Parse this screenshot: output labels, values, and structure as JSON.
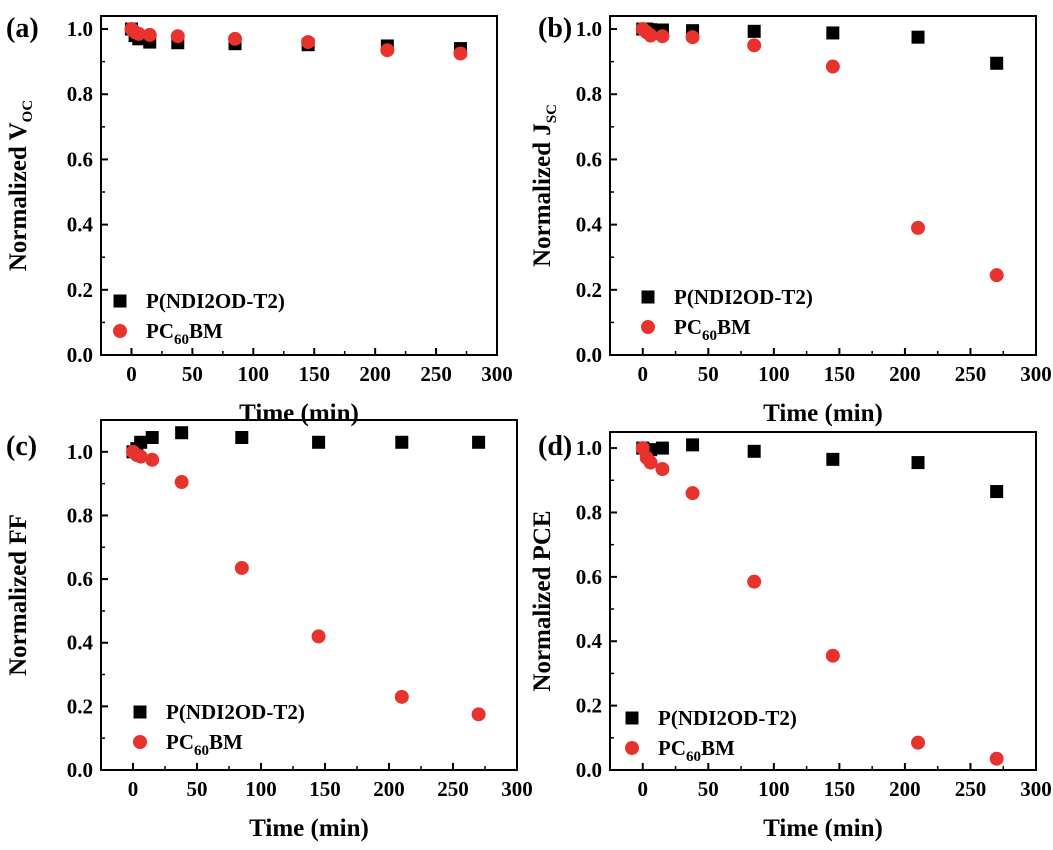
{
  "figure": {
    "series_styles": [
      {
        "name": "P(NDI2OD-T2)",
        "marker": "square",
        "color": "#000000"
      },
      {
        "name": "PC60BM",
        "marker": "circle",
        "color": "#e8322e"
      }
    ]
  },
  "chart_data": [
    {
      "type": "scatter",
      "panel": "(a)",
      "xlabel": "Time (min)",
      "ylabel": {
        "main": "Normalized V",
        "sub": "OC"
      },
      "xlim": [
        -25,
        300
      ],
      "ylim": [
        0,
        1.04
      ],
      "xticks": [
        0,
        50,
        100,
        150,
        200,
        250,
        300
      ],
      "yticks": [
        0.0,
        0.2,
        0.4,
        0.6,
        0.8,
        1.0
      ],
      "legend_position": "bottom-left",
      "series": [
        {
          "name": "P(NDI2OD-T2)",
          "legend": {
            "main": "P(NDI2OD-T2)"
          },
          "x": [
            0,
            3,
            6,
            15,
            38,
            85,
            145,
            210,
            270
          ],
          "y": [
            1.0,
            0.98,
            0.97,
            0.96,
            0.958,
            0.955,
            0.952,
            0.948,
            0.94
          ]
        },
        {
          "name": "PC60BM",
          "legend": {
            "main": "PC",
            "sub": "60",
            "after": "BM"
          },
          "x": [
            0,
            3,
            6,
            15,
            38,
            85,
            145,
            210,
            270
          ],
          "y": [
            1.0,
            0.99,
            0.985,
            0.982,
            0.978,
            0.97,
            0.96,
            0.935,
            0.925
          ]
        }
      ]
    },
    {
      "type": "scatter",
      "panel": "(b)",
      "xlabel": "Time (min)",
      "ylabel": {
        "main": "Normalized J",
        "sub": "SC"
      },
      "xlim": [
        -25,
        300
      ],
      "ylim": [
        0,
        1.04
      ],
      "xticks": [
        0,
        50,
        100,
        150,
        200,
        250,
        300
      ],
      "yticks": [
        0.0,
        0.2,
        0.4,
        0.6,
        0.8,
        1.0
      ],
      "legend_position": "bottom-left",
      "series": [
        {
          "name": "P(NDI2OD-T2)",
          "legend": {
            "main": "P(NDI2OD-T2)"
          },
          "x": [
            0,
            3,
            6,
            15,
            38,
            85,
            145,
            210,
            270
          ],
          "y": [
            1.0,
            1.0,
            0.998,
            0.997,
            0.995,
            0.993,
            0.988,
            0.975,
            0.895
          ]
        },
        {
          "name": "PC60BM",
          "legend": {
            "main": "PC",
            "sub": "60",
            "after": "BM"
          },
          "x": [
            0,
            3,
            6,
            15,
            38,
            85,
            145,
            210,
            270
          ],
          "y": [
            1.0,
            0.99,
            0.98,
            0.978,
            0.975,
            0.95,
            0.885,
            0.39,
            0.245
          ]
        }
      ]
    },
    {
      "type": "scatter",
      "panel": "(c)",
      "xlabel": "Time (min)",
      "ylabel": {
        "main": "Normalized FF"
      },
      "xlim": [
        -25,
        300
      ],
      "ylim": [
        0,
        1.1
      ],
      "xticks": [
        0,
        50,
        100,
        150,
        200,
        250,
        300
      ],
      "yticks": [
        0.0,
        0.2,
        0.4,
        0.6,
        0.8,
        1.0
      ],
      "legend_position": "bottom-left",
      "series": [
        {
          "name": "P(NDI2OD-T2)",
          "legend": {
            "main": "P(NDI2OD-T2)"
          },
          "x": [
            0,
            3,
            6,
            15,
            38,
            85,
            145,
            210,
            270
          ],
          "y": [
            1.0,
            1.01,
            1.03,
            1.045,
            1.06,
            1.045,
            1.03,
            1.03,
            1.03
          ]
        },
        {
          "name": "PC60BM",
          "legend": {
            "main": "PC",
            "sub": "60",
            "after": "BM"
          },
          "x": [
            0,
            3,
            6,
            15,
            38,
            85,
            145,
            210,
            270
          ],
          "y": [
            1.0,
            0.99,
            0.985,
            0.975,
            0.905,
            0.635,
            0.42,
            0.23,
            0.175
          ]
        }
      ]
    },
    {
      "type": "scatter",
      "panel": "(d)",
      "xlabel": "Time (min)",
      "ylabel": {
        "main": "Normalized PCE"
      },
      "xlim": [
        -25,
        300
      ],
      "ylim": [
        0,
        1.05
      ],
      "xticks": [
        0,
        50,
        100,
        150,
        200,
        250,
        300
      ],
      "yticks": [
        0.0,
        0.2,
        0.4,
        0.6,
        0.8,
        1.0
      ],
      "legend_position": "bottom-left",
      "series": [
        {
          "name": "P(NDI2OD-T2)",
          "legend": {
            "main": "P(NDI2OD-T2)"
          },
          "x": [
            0,
            3,
            6,
            15,
            38,
            85,
            145,
            210,
            270
          ],
          "y": [
            1.0,
            0.995,
            0.995,
            1.0,
            1.01,
            0.99,
            0.965,
            0.955,
            0.865
          ]
        },
        {
          "name": "PC60BM",
          "legend": {
            "main": "PC",
            "sub": "60",
            "after": "BM"
          },
          "x": [
            0,
            3,
            6,
            15,
            38,
            85,
            145,
            210,
            270
          ],
          "y": [
            1.0,
            0.97,
            0.955,
            0.935,
            0.86,
            0.585,
            0.355,
            0.085,
            0.035
          ]
        }
      ]
    }
  ]
}
